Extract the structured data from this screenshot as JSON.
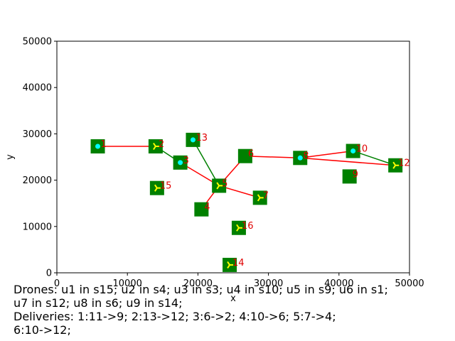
{
  "chart_data": {
    "type": "scatter",
    "xlabel": "x",
    "ylabel": "y",
    "xlim": [
      0,
      50000
    ],
    "ylim": [
      0,
      50000
    ],
    "xticks": [
      0,
      10000,
      20000,
      30000,
      40000,
      50000
    ],
    "yticks": [
      0,
      10000,
      20000,
      30000,
      40000,
      50000
    ],
    "grid": false,
    "colors": {
      "station": "#008000",
      "route_red": "#ff0000",
      "route_green": "#008000",
      "drone": "#00ffff",
      "marker": "#ffff00",
      "label": "#e00000"
    },
    "nodes": [
      {
        "id": "1",
        "x": 5800,
        "y": 27300,
        "marker": "drone"
      },
      {
        "id": "2",
        "x": 14000,
        "y": 27300,
        "marker": "tri"
      },
      {
        "id": "3",
        "x": 17500,
        "y": 23800,
        "marker": "drone"
      },
      {
        "id": "4",
        "x": 20500,
        "y": 13700,
        "marker": "none"
      },
      {
        "id": "5",
        "x": 23000,
        "y": 18800,
        "marker": "tri"
      },
      {
        "id": "6",
        "x": 26700,
        "y": 25200,
        "marker": "none"
      },
      {
        "id": "7",
        "x": 28800,
        "y": 16200,
        "marker": "tri"
      },
      {
        "id": "8",
        "x": 34500,
        "y": 24800,
        "marker": "drone"
      },
      {
        "id": "9",
        "x": 41500,
        "y": 20800,
        "marker": "none"
      },
      {
        "id": "10",
        "x": 42000,
        "y": 26300,
        "marker": "drone"
      },
      {
        "id": "12",
        "x": 48000,
        "y": 23200,
        "marker": "tri"
      },
      {
        "id": "13",
        "x": 19300,
        "y": 28700,
        "marker": "drone"
      },
      {
        "id": "14",
        "x": 24500,
        "y": 1700,
        "marker": "tri"
      },
      {
        "id": "15",
        "x": 14200,
        "y": 18300,
        "marker": "tri"
      },
      {
        "id": "16",
        "x": 25800,
        "y": 9700,
        "marker": "tri"
      }
    ],
    "routes": [
      {
        "color": "red",
        "from": "1",
        "to": "2"
      },
      {
        "color": "green",
        "from": "2",
        "to": "3"
      },
      {
        "color": "red",
        "from": "3",
        "to": "5"
      },
      {
        "color": "green",
        "from": "13",
        "to": "5"
      },
      {
        "color": "red",
        "from": "5",
        "to": "7"
      },
      {
        "color": "red",
        "from": "4",
        "to": "5"
      },
      {
        "color": "red",
        "from": "5",
        "to": "6"
      },
      {
        "color": "red",
        "from": "6",
        "to": "8"
      },
      {
        "color": "red",
        "from": "8",
        "to": "10"
      },
      {
        "color": "green",
        "from": "10",
        "to": "12"
      },
      {
        "color": "red",
        "from": "8",
        "to": "12"
      }
    ]
  },
  "caption": {
    "line1": "Drones: u1 in s15; u2 in s4; u3 in s3; u4 in s10; u5 in s9; u6 in s1;",
    "line2": "u7 in s12; u8 in s6; u9 in s14;",
    "line3": "Deliveries: 1:11->9; 2:13->12; 3:6->2; 4:10->6; 5:7->4;",
    "line4": "6:10->12;"
  }
}
